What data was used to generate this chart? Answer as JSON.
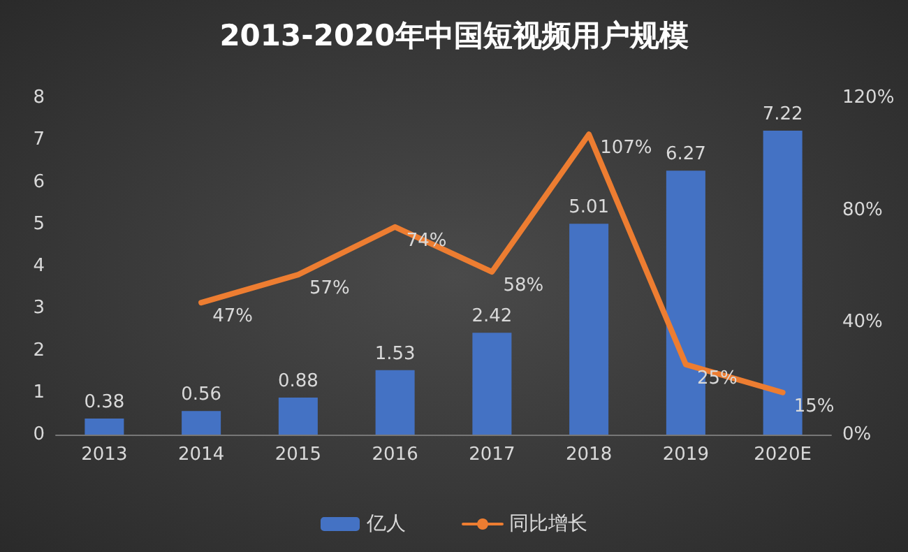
{
  "chart_data": {
    "type": "bar",
    "title": "2013-2020年中国短视频用户规模",
    "categories": [
      "2013",
      "2014",
      "2015",
      "2016",
      "2017",
      "2018",
      "2019",
      "2020E"
    ],
    "series": [
      {
        "name": "亿人",
        "color": "#4472c4",
        "values": [
          0.38,
          0.56,
          0.88,
          1.53,
          2.42,
          5.01,
          6.27,
          7.22
        ]
      },
      {
        "name": "同比增长",
        "type": "line",
        "axis": "y2",
        "color": "#ed7d31",
        "values": [
          null,
          47,
          57,
          74,
          58,
          107,
          25,
          15
        ],
        "value_labels": [
          null,
          "47%",
          "57%",
          "74%",
          "58%",
          "107%",
          "25%",
          "15%"
        ]
      }
    ],
    "ylim": [
      0,
      8
    ],
    "yticks": [
      0,
      1,
      2,
      3,
      4,
      5,
      6,
      7,
      8
    ],
    "y2lim": [
      0,
      120
    ],
    "y2ticks": [
      {
        "value": 0,
        "label": "0%"
      },
      {
        "value": 40,
        "label": "40%"
      },
      {
        "value": 80,
        "label": "80%"
      },
      {
        "value": 120,
        "label": "120%"
      }
    ],
    "data_labels": true,
    "legend": "bottom",
    "marker": "none",
    "line_style": "solid"
  }
}
